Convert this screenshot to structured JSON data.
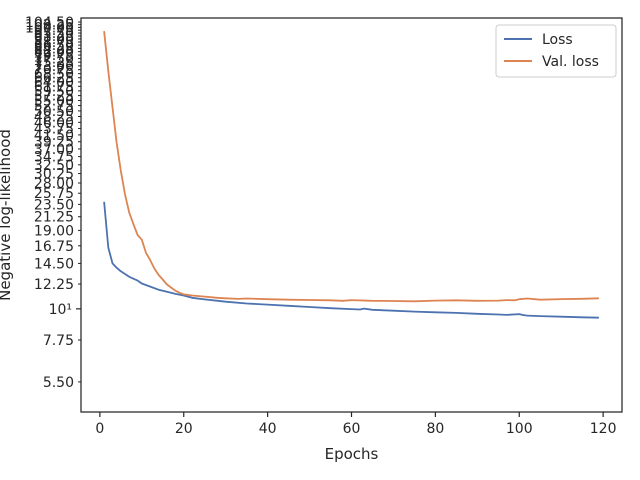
{
  "chart_data": {
    "type": "line",
    "xlabel": "Epochs",
    "ylabel": "Negative log-likelihood",
    "yscale": "log",
    "xlim": [
      -4.5,
      124.5
    ],
    "ylim": [
      4.3,
      108
    ],
    "grid": false,
    "legend": "top-right",
    "xticks": [
      0,
      20,
      40,
      60,
      80,
      100,
      120
    ],
    "yticks_major": [
      10
    ],
    "yticks_major_labels": [
      "10¹"
    ],
    "yticks_minor": [
      5.5,
      7.75,
      12.25,
      14.5,
      16.75,
      19.0,
      21.25,
      23.5,
      25.75,
      28.0,
      30.25,
      32.5,
      34.75,
      37.0,
      39.25,
      41.5,
      43.75,
      46.0,
      48.25,
      50.5,
      52.75,
      55.0,
      57.25,
      59.5,
      61.75,
      64.0,
      66.25,
      68.5,
      70.75,
      73.0,
      75.25,
      77.5,
      79.75,
      82.0,
      84.25,
      86.5,
      88.75,
      91.0,
      93.25,
      95.5,
      97.75,
      100.0,
      102.25,
      104.5
    ],
    "yticks_minor_labels": [
      "5.50",
      "7.75",
      "12.25",
      "14.50",
      "16.75",
      "19.00",
      "21.25",
      "23.50",
      "25.75",
      "28.00",
      "30.25",
      "32.50",
      "34.75",
      "37.00",
      "39.25",
      "41.50",
      "43.75",
      "46.00",
      "48.25",
      "50.50",
      "52.75",
      "55.00",
      "57.25",
      "59.50",
      "61.75",
      "64.00",
      "66.25",
      "68.50",
      "70.75",
      "73.00",
      "75.25",
      "77.50",
      "79.75",
      "82.00",
      "84.25",
      "86.50",
      "88.75",
      "91.00",
      "93.25",
      "95.50",
      "97.75",
      "100.00",
      "102.25",
      "104.50"
    ],
    "series": [
      {
        "name": "Loss",
        "color": "#4c72b0",
        "x": [
          1,
          2,
          3,
          4,
          5,
          6,
          7,
          8,
          9,
          10,
          12,
          14,
          16,
          18,
          20,
          22,
          25,
          30,
          35,
          40,
          45,
          50,
          55,
          60,
          62,
          63,
          65,
          70,
          75,
          80,
          85,
          90,
          95,
          97,
          100,
          101,
          102,
          105,
          110,
          115,
          119
        ],
        "y": [
          24.0,
          16.5,
          14.5,
          14.0,
          13.6,
          13.3,
          13.0,
          12.8,
          12.6,
          12.3,
          12.0,
          11.7,
          11.5,
          11.3,
          11.15,
          10.95,
          10.8,
          10.6,
          10.45,
          10.35,
          10.25,
          10.15,
          10.05,
          9.98,
          9.95,
          10.02,
          9.92,
          9.85,
          9.78,
          9.72,
          9.67,
          9.6,
          9.55,
          9.52,
          9.58,
          9.5,
          9.46,
          9.42,
          9.38,
          9.33,
          9.3
        ]
      },
      {
        "name": "Val. loss",
        "color": "#dd8452",
        "x": [
          1,
          2,
          3,
          4,
          5,
          6,
          7,
          8,
          9,
          10,
          11,
          12,
          13,
          14,
          15,
          16,
          17,
          18,
          19,
          20,
          22,
          25,
          28,
          30,
          33,
          35,
          40,
          45,
          50,
          55,
          58,
          60,
          65,
          70,
          75,
          80,
          85,
          90,
          95,
          97,
          99,
          100,
          102,
          105,
          110,
          115,
          119
        ],
        "y": [
          97.0,
          70.0,
          52.0,
          39.0,
          31.0,
          25.5,
          22.0,
          20.0,
          18.3,
          17.6,
          15.8,
          14.9,
          13.9,
          13.2,
          12.7,
          12.2,
          11.9,
          11.6,
          11.4,
          11.25,
          11.15,
          11.05,
          10.95,
          10.9,
          10.85,
          10.88,
          10.82,
          10.78,
          10.75,
          10.72,
          10.68,
          10.74,
          10.68,
          10.66,
          10.64,
          10.7,
          10.72,
          10.68,
          10.7,
          10.74,
          10.72,
          10.82,
          10.88,
          10.78,
          10.83,
          10.86,
          10.9
        ]
      }
    ]
  }
}
